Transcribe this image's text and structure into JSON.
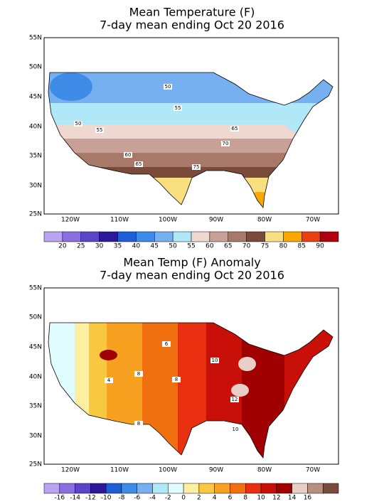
{
  "maps": [
    {
      "title": "Mean Temperature (F)",
      "subtitle": "7-day mean ending Oct 20 2016",
      "lat_labels": [
        "55N",
        "50N",
        "45N",
        "40N",
        "35N",
        "30N",
        "25N"
      ],
      "lon_labels": [
        "120W",
        "110W",
        "100W",
        "90W",
        "80W",
        "70W"
      ],
      "contour_labels": [
        50,
        55,
        50,
        55,
        60,
        65,
        65,
        70,
        75
      ],
      "colorbar": {
        "labels": [
          20,
          25,
          30,
          35,
          40,
          45,
          50,
          55,
          60,
          65,
          70,
          75,
          80,
          85,
          90
        ],
        "colors": [
          "#b8a4f0",
          "#8a6fe0",
          "#5a45c8",
          "#2a1a9a",
          "#1e5fd8",
          "#3f8be8",
          "#76b0f0",
          "#b0e8f8",
          "#eed8d0",
          "#c8a095",
          "#a87868",
          "#7a4a3a",
          "#f8e080",
          "#f8a800",
          "#e84010",
          "#b00010"
        ]
      }
    },
    {
      "title": "Mean Temp (F) Anomaly",
      "subtitle": "7-day mean ending Oct 20 2016",
      "lat_labels": [
        "55N",
        "50N",
        "45N",
        "40N",
        "35N",
        "30N",
        "25N"
      ],
      "lon_labels": [
        "120W",
        "110W",
        "100W",
        "90W",
        "80W",
        "70W"
      ],
      "contour_labels": [
        6,
        8,
        4,
        8,
        10,
        12,
        8,
        10
      ],
      "colorbar": {
        "labels": [
          -16,
          -14,
          -12,
          -10,
          -8,
          -6,
          -4,
          -2,
          0,
          2,
          4,
          6,
          8,
          10,
          12,
          14,
          16
        ],
        "colors": [
          "#b8a4f0",
          "#8a6fe0",
          "#5a45c8",
          "#2a1a9a",
          "#1e5fd8",
          "#3f8be8",
          "#76b0f0",
          "#b0e8f8",
          "#e0fcff",
          "#fcf0a0",
          "#f8c840",
          "#f8a020",
          "#f07010",
          "#e83010",
          "#c81008",
          "#a00000",
          "#e8d0c8",
          "#b89080",
          "#7a4a3a"
        ]
      }
    }
  ]
}
